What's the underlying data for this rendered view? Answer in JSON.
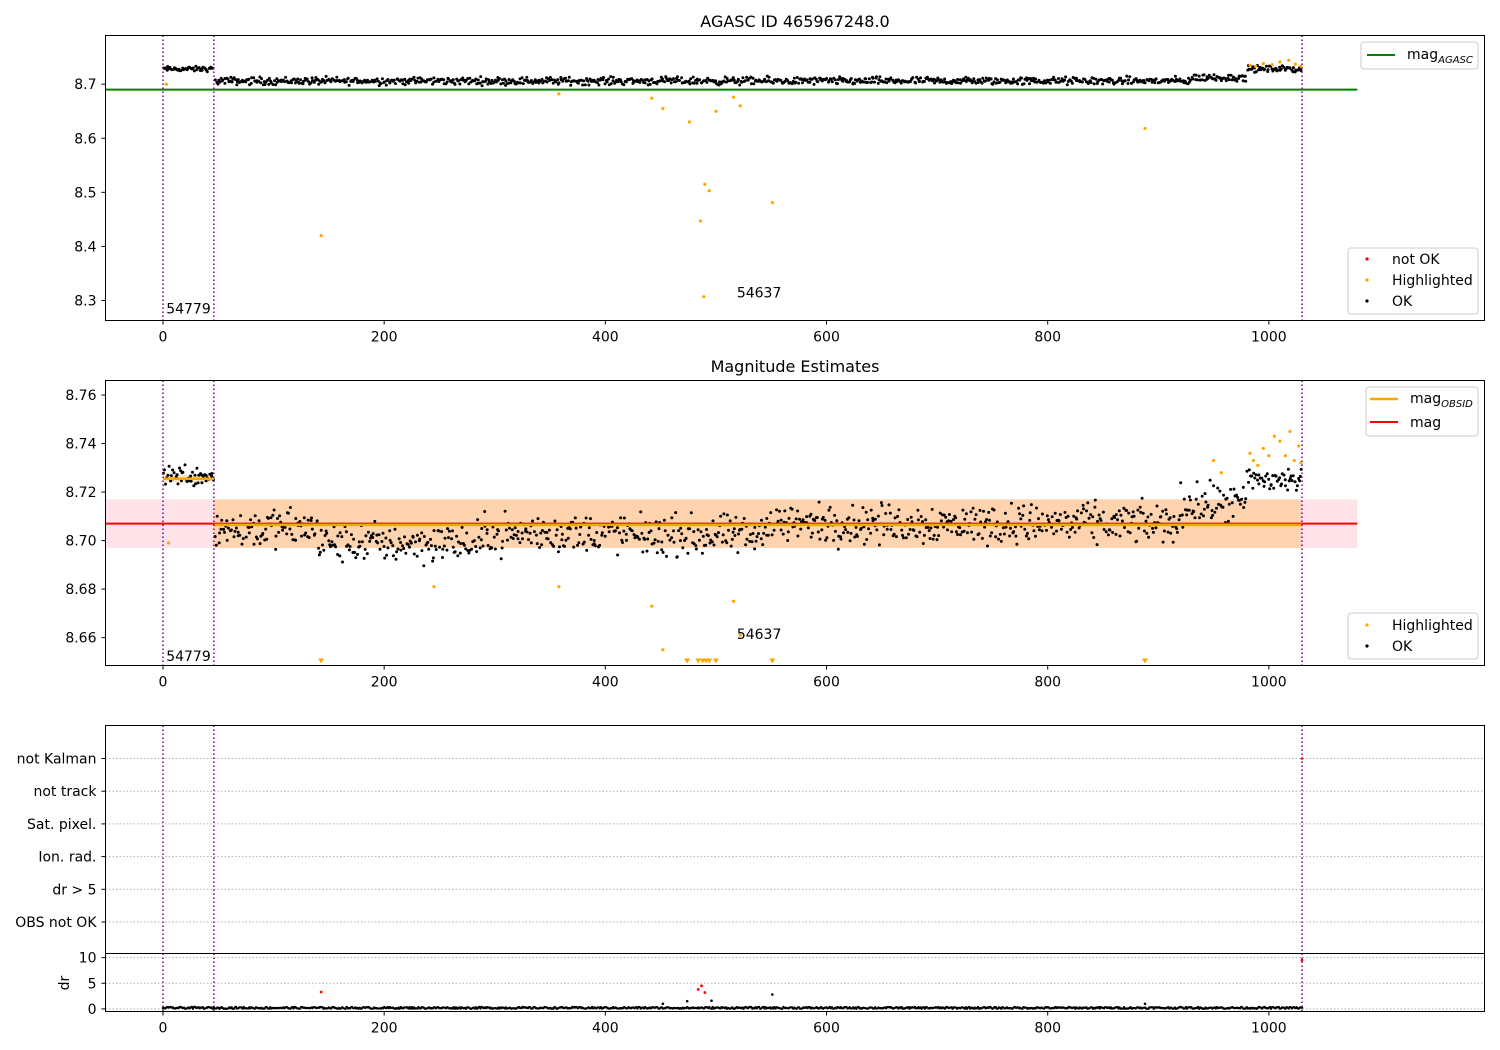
{
  "chart_data": [
    {
      "type": "scatter",
      "title": "AGASC ID 465967248.0",
      "xlim": [
        -52,
        1195
      ],
      "ylim": [
        8.263,
        8.79
      ],
      "xticks": [
        0,
        200,
        400,
        600,
        800,
        1000
      ],
      "xtick_labels": [
        "0",
        "200",
        "400",
        "600",
        "800",
        "1000"
      ],
      "yticks": [
        8.3,
        8.4,
        8.5,
        8.6,
        8.7
      ],
      "ytick_labels": [
        "8.3",
        "8.4",
        "8.5",
        "8.6",
        "8.7"
      ],
      "mag_agasc": 8.69,
      "mag_agasc_xrange": [
        -52,
        1080
      ],
      "vlines": [
        0,
        46,
        1030
      ],
      "legend": {
        "position": "top-right",
        "entries": [
          {
            "label_main": "mag",
            "label_sub": "AGASC",
            "color": "#008000"
          }
        ]
      },
      "legend2": {
        "position": "bottom-right",
        "entries": [
          {
            "label": "not OK",
            "color": "#ff0000"
          },
          {
            "label": "Highlighted",
            "color": "#ffa500"
          },
          {
            "label": "OK",
            "color": "#000000"
          }
        ]
      },
      "annotations": [
        {
          "text": "54779",
          "x": 2,
          "y": 8.285
        },
        {
          "text": "54637",
          "x": 518,
          "y": 8.315
        }
      ],
      "highlighted_points": [
        {
          "x": 3,
          "y": 8.7
        },
        {
          "x": 143,
          "y": 8.42
        },
        {
          "x": 358,
          "y": 8.682
        },
        {
          "x": 442,
          "y": 8.674
        },
        {
          "x": 452,
          "y": 8.655
        },
        {
          "x": 476,
          "y": 8.63
        },
        {
          "x": 486,
          "y": 8.447
        },
        {
          "x": 489,
          "y": 8.307
        },
        {
          "x": 490,
          "y": 8.515
        },
        {
          "x": 494,
          "y": 8.503
        },
        {
          "x": 500,
          "y": 8.65
        },
        {
          "x": 516,
          "y": 8.676
        },
        {
          "x": 522,
          "y": 8.66
        },
        {
          "x": 551,
          "y": 8.481
        },
        {
          "x": 888,
          "y": 8.618
        },
        {
          "x": 983,
          "y": 8.735
        },
        {
          "x": 988,
          "y": 8.733
        },
        {
          "x": 995,
          "y": 8.738
        },
        {
          "x": 1003,
          "y": 8.736
        },
        {
          "x": 1010,
          "y": 8.741
        },
        {
          "x": 1018,
          "y": 8.744
        },
        {
          "x": 1024,
          "y": 8.737
        },
        {
          "x": 1029,
          "y": 8.733
        }
      ],
      "ok_segments": [
        {
          "x0": 0,
          "x1": 46,
          "center": 8.728,
          "spread": 0.004
        },
        {
          "x0": 47,
          "x1": 930,
          "center": 8.706,
          "spread": 0.006
        },
        {
          "x0": 930,
          "x1": 980,
          "center": 8.712,
          "spread": 0.006
        },
        {
          "x0": 980,
          "x1": 1030,
          "center": 8.728,
          "spread": 0.005
        }
      ]
    },
    {
      "type": "scatter",
      "title": "Magnitude Estimates",
      "xlim": [
        -52,
        1195
      ],
      "ylim": [
        8.6485,
        8.766
      ],
      "xticks": [
        0,
        200,
        400,
        600,
        800,
        1000
      ],
      "xtick_labels": [
        "0",
        "200",
        "400",
        "600",
        "800",
        "1000"
      ],
      "yticks": [
        8.66,
        8.68,
        8.7,
        8.72,
        8.74,
        8.76
      ],
      "ytick_labels": [
        "8.66",
        "8.68",
        "8.70",
        "8.72",
        "8.74",
        "8.76"
      ],
      "mag": 8.707,
      "mag_band": [
        8.697,
        8.717
      ],
      "mag_band_xrange": [
        -52,
        1080
      ],
      "mag_obsid": [
        {
          "x0": 0,
          "x1": 46,
          "y": 8.7255,
          "band": [
            8.724,
            8.727
          ]
        },
        {
          "x0": 46,
          "x1": 1030,
          "y": 8.7065,
          "band": [
            8.697,
            8.717
          ]
        }
      ],
      "vlines": [
        0,
        46,
        1030
      ],
      "legend": {
        "position": "top-right",
        "entries": [
          {
            "label_main": "mag",
            "label_sub": "OBSID",
            "color": "#ffa500"
          },
          {
            "label_main": "mag",
            "label_sub": "",
            "color": "#ff0000"
          }
        ]
      },
      "legend2": {
        "position": "bottom-right",
        "entries": [
          {
            "label": "Highlighted",
            "color": "#ffa500"
          },
          {
            "label": "OK",
            "color": "#000000"
          }
        ]
      },
      "annotations": [
        {
          "text": "54779",
          "x": 2,
          "y": 8.6525
        },
        {
          "text": "54637",
          "x": 518,
          "y": 8.6615
        }
      ],
      "highlighted_points": [
        {
          "x": 5,
          "y": 8.699
        },
        {
          "x": 245,
          "y": 8.681
        },
        {
          "x": 358,
          "y": 8.681
        },
        {
          "x": 442,
          "y": 8.673
        },
        {
          "x": 452,
          "y": 8.655
        },
        {
          "x": 516,
          "y": 8.675
        },
        {
          "x": 522,
          "y": 8.661
        },
        {
          "x": 950,
          "y": 8.733
        },
        {
          "x": 957,
          "y": 8.728
        },
        {
          "x": 983,
          "y": 8.736
        },
        {
          "x": 986,
          "y": 8.733
        },
        {
          "x": 990,
          "y": 8.731
        },
        {
          "x": 995,
          "y": 8.738
        },
        {
          "x": 1000,
          "y": 8.735
        },
        {
          "x": 1005,
          "y": 8.743
        },
        {
          "x": 1010,
          "y": 8.741
        },
        {
          "x": 1015,
          "y": 8.735
        },
        {
          "x": 1019,
          "y": 8.745
        },
        {
          "x": 1023,
          "y": 8.733
        },
        {
          "x": 1027,
          "y": 8.739
        },
        {
          "x": 1029,
          "y": 8.732
        }
      ],
      "lower_limit_markers": [
        143,
        474,
        484,
        488,
        491,
        494,
        500,
        551,
        888
      ],
      "ok_segments": [
        {
          "x0": 0,
          "x1": 46,
          "center": 8.727,
          "spread": 0.004
        },
        {
          "x0": 47,
          "x1": 140,
          "center": 8.705,
          "spread": 0.007
        },
        {
          "x0": 140,
          "x1": 290,
          "center": 8.699,
          "spread": 0.007
        },
        {
          "x0": 290,
          "x1": 420,
          "center": 8.703,
          "spread": 0.007
        },
        {
          "x0": 420,
          "x1": 540,
          "center": 8.702,
          "spread": 0.007
        },
        {
          "x0": 540,
          "x1": 920,
          "center": 8.707,
          "spread": 0.007
        },
        {
          "x0": 920,
          "x1": 980,
          "center": 8.715,
          "spread": 0.007
        },
        {
          "x0": 980,
          "x1": 1030,
          "center": 8.725,
          "spread": 0.005
        }
      ]
    },
    {
      "type": "scatter",
      "title": "",
      "xlim": [
        -52,
        1195
      ],
      "categories": [
        "not Kalman",
        "not track",
        "Sat. pixel.",
        "Ion. rad.",
        "dr > 5",
        "OBS not OK"
      ],
      "vlines": [
        0,
        46,
        1030
      ],
      "flag_points": [
        {
          "x": 1030,
          "category": "not Kalman",
          "color": "#ff0000"
        }
      ]
    },
    {
      "type": "scatter",
      "title": "",
      "ylabel": "dr",
      "xlim": [
        -52,
        1195
      ],
      "ylim": [
        -0.5,
        10.8
      ],
      "xticks": [
        0,
        200,
        400,
        600,
        800,
        1000
      ],
      "xtick_labels": [
        "0",
        "200",
        "400",
        "600",
        "800",
        "1000"
      ],
      "yticks": [
        0,
        5,
        10
      ],
      "ytick_labels": [
        "0",
        "5",
        "10"
      ],
      "vlines": [
        0,
        46,
        1030
      ],
      "baseline": 0.2,
      "red_points": [
        {
          "x": 143,
          "y": 3.3
        },
        {
          "x": 484,
          "y": 3.8
        },
        {
          "x": 487,
          "y": 4.5
        },
        {
          "x": 490,
          "y": 3.2
        },
        {
          "x": 1030,
          "y": 9.5
        }
      ],
      "black_points": [
        {
          "x": 452,
          "y": 1.0
        },
        {
          "x": 474,
          "y": 1.5
        },
        {
          "x": 496,
          "y": 1.6
        },
        {
          "x": 551,
          "y": 2.8
        },
        {
          "x": 888,
          "y": 1.0
        }
      ]
    }
  ]
}
